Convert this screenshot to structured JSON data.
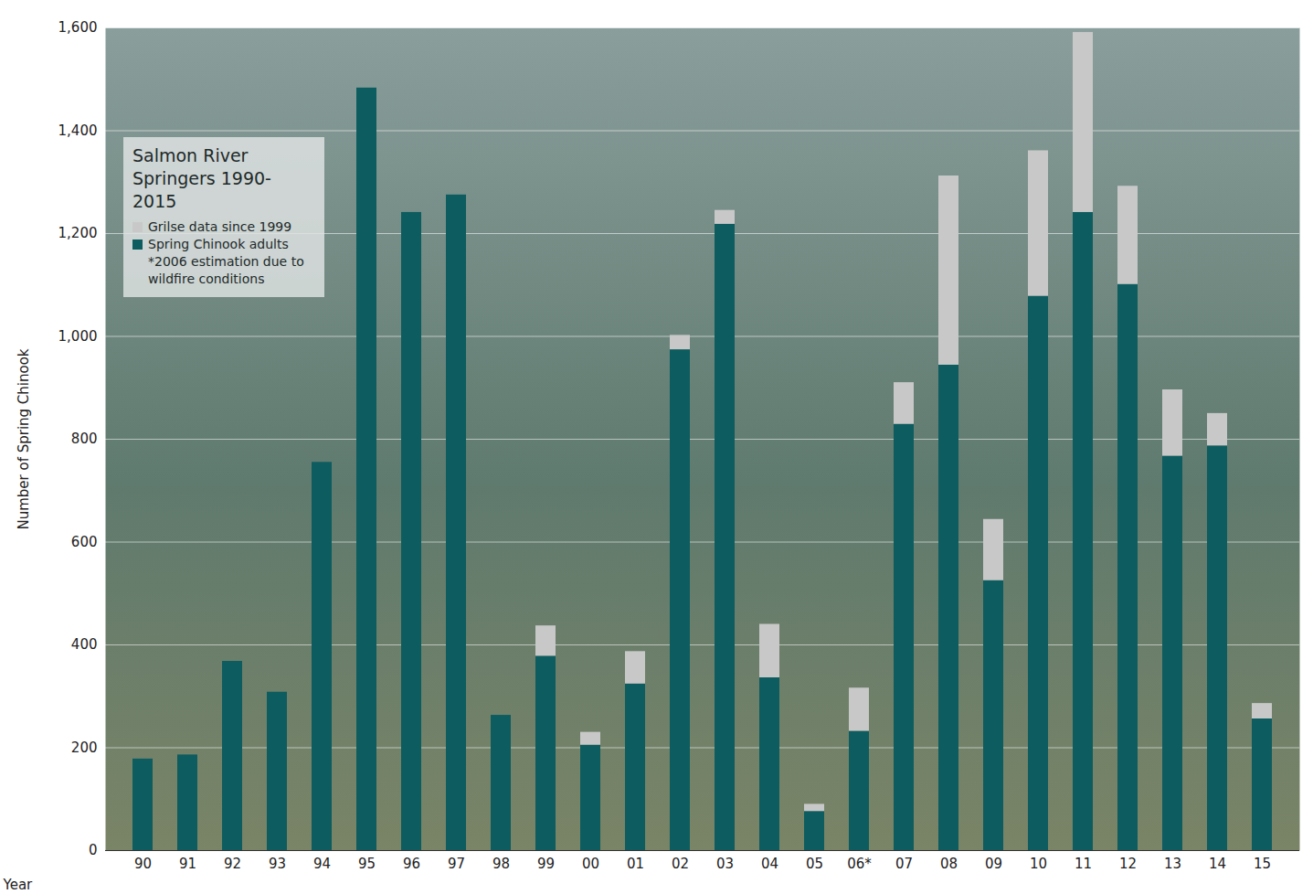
{
  "chart_data": {
    "type": "bar",
    "title": "Salmon River Springers 1990-2015",
    "x_label": "Year",
    "y_label": "Number of Spring Chinook",
    "categories": [
      "90",
      "91",
      "92",
      "93",
      "94",
      "95",
      "96",
      "97",
      "98",
      "99",
      "00",
      "01",
      "02",
      "03",
      "04",
      "05",
      "06*",
      "07",
      "08",
      "09",
      "10",
      "11",
      "12",
      "13",
      "14",
      "15"
    ],
    "series": [
      {
        "name": "Spring Chinook adults",
        "color": "#0d5c5f",
        "values": [
          178,
          186,
          368,
          308,
          755,
          1483,
          1241,
          1275,
          263,
          378,
          205,
          324,
          974,
          1218,
          336,
          76,
          232,
          829,
          944,
          525,
          1078,
          1241,
          1101,
          767,
          787,
          256
        ]
      },
      {
        "name": "Grilse data since 1999",
        "color": "#c8c8c8",
        "values": [
          null,
          null,
          null,
          null,
          null,
          null,
          null,
          null,
          null,
          59,
          25,
          63,
          28,
          27,
          104,
          14,
          84,
          81,
          368,
          119,
          283,
          350,
          191,
          129,
          63,
          30
        ]
      }
    ],
    "annotations": [
      "*2006 estimation due to wildfire conditions"
    ],
    "ylim": [
      0,
      1600
    ],
    "yticks": [
      0,
      200,
      400,
      600,
      800,
      1000,
      1200,
      1400,
      1600
    ],
    "stacked": true,
    "grid": true,
    "legend": "top-left"
  }
}
